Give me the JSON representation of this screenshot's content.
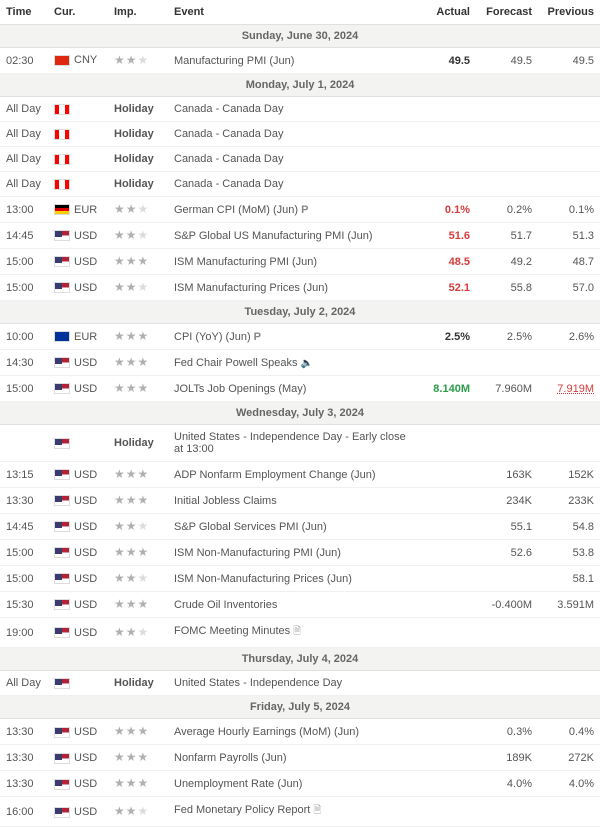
{
  "colors": {
    "text": "#333333",
    "muted": "#555555",
    "border": "#e0e0e0",
    "row_border": "#f0f0f0",
    "day_bg": "#f3f3f1",
    "actual_red": "#d73c3c",
    "actual_green": "#2a9c4a",
    "star_off": "#dcdcdc",
    "star_on": "#b0b0b0"
  },
  "columns": {
    "time": "Time",
    "cur": "Cur.",
    "imp": "Imp.",
    "event": "Event",
    "actual": "Actual",
    "forecast": "Forecast",
    "previous": "Previous"
  },
  "flag_map": {
    "CNY": "cn",
    "CAD": "ca",
    "EUR_DE": "de",
    "EUR": "eu",
    "USD": "us"
  },
  "days": [
    {
      "label": "Sunday, June 30, 2024",
      "rows": [
        {
          "time": "02:30",
          "cur": "CNY",
          "flag": "cn",
          "imp": 2,
          "event": "Manufacturing PMI (Jun)",
          "actual": "49.5",
          "actual_style": "bold",
          "forecast": "49.5",
          "previous": "49.5"
        }
      ]
    },
    {
      "label": "Monday, July 1, 2024",
      "rows": [
        {
          "time": "All Day",
          "cur": "",
          "flag": "ca",
          "holiday": true,
          "event": "Canada - Canada Day"
        },
        {
          "time": "All Day",
          "cur": "",
          "flag": "ca",
          "holiday": true,
          "event": "Canada - Canada Day"
        },
        {
          "time": "All Day",
          "cur": "",
          "flag": "ca",
          "holiday": true,
          "event": "Canada - Canada Day"
        },
        {
          "time": "All Day",
          "cur": "",
          "flag": "ca",
          "holiday": true,
          "event": "Canada - Canada Day"
        },
        {
          "time": "13:00",
          "cur": "EUR",
          "flag": "de",
          "imp": 2,
          "event": "German CPI (MoM) (Jun)",
          "prelim": true,
          "actual": "0.1%",
          "actual_style": "red",
          "forecast": "0.2%",
          "previous": "0.1%"
        },
        {
          "time": "14:45",
          "cur": "USD",
          "flag": "us",
          "imp": 2,
          "event": "S&P Global US Manufacturing PMI (Jun)",
          "actual": "51.6",
          "actual_style": "red",
          "forecast": "51.7",
          "previous": "51.3"
        },
        {
          "time": "15:00",
          "cur": "USD",
          "flag": "us",
          "imp": 3,
          "event": "ISM Manufacturing PMI (Jun)",
          "actual": "48.5",
          "actual_style": "red",
          "forecast": "49.2",
          "previous": "48.7"
        },
        {
          "time": "15:00",
          "cur": "USD",
          "flag": "us",
          "imp": 2,
          "event": "ISM Manufacturing Prices (Jun)",
          "actual": "52.1",
          "actual_style": "red",
          "forecast": "55.8",
          "previous": "57.0"
        }
      ]
    },
    {
      "label": "Tuesday, July 2, 2024",
      "rows": [
        {
          "time": "10:00",
          "cur": "EUR",
          "flag": "eu",
          "imp": 3,
          "event": "CPI (YoY) (Jun)",
          "prelim": true,
          "actual": "2.5%",
          "actual_style": "bold",
          "forecast": "2.5%",
          "previous": "2.6%"
        },
        {
          "time": "14:30",
          "cur": "USD",
          "flag": "us",
          "imp": 3,
          "event": "Fed Chair Powell Speaks",
          "audio": true
        },
        {
          "time": "15:00",
          "cur": "USD",
          "flag": "us",
          "imp": 3,
          "event": "JOLTs Job Openings (May)",
          "actual": "8.140M",
          "actual_style": "green",
          "forecast": "7.960M",
          "previous": "7.919M",
          "prev_revised": true
        }
      ]
    },
    {
      "label": "Wednesday, July 3, 2024",
      "rows": [
        {
          "time": "",
          "cur": "",
          "flag": "us",
          "holiday": true,
          "event": "United States - Independence Day - Early close at 13:00"
        },
        {
          "time": "13:15",
          "cur": "USD",
          "flag": "us",
          "imp": 3,
          "event": "ADP Nonfarm Employment Change (Jun)",
          "forecast": "163K",
          "previous": "152K"
        },
        {
          "time": "13:30",
          "cur": "USD",
          "flag": "us",
          "imp": 3,
          "event": "Initial Jobless Claims",
          "forecast": "234K",
          "previous": "233K"
        },
        {
          "time": "14:45",
          "cur": "USD",
          "flag": "us",
          "imp": 2,
          "event": "S&P Global Services PMI (Jun)",
          "forecast": "55.1",
          "previous": "54.8"
        },
        {
          "time": "15:00",
          "cur": "USD",
          "flag": "us",
          "imp": 3,
          "event": "ISM Non-Manufacturing PMI (Jun)",
          "forecast": "52.6",
          "previous": "53.8"
        },
        {
          "time": "15:00",
          "cur": "USD",
          "flag": "us",
          "imp": 2,
          "event": "ISM Non-Manufacturing Prices (Jun)",
          "previous": "58.1"
        },
        {
          "time": "15:30",
          "cur": "USD",
          "flag": "us",
          "imp": 3,
          "event": "Crude Oil Inventories",
          "forecast": "-0.400M",
          "previous": "3.591M"
        },
        {
          "time": "19:00",
          "cur": "USD",
          "flag": "us",
          "imp": 2,
          "event": "FOMC Meeting Minutes",
          "doc": true
        }
      ]
    },
    {
      "label": "Thursday, July 4, 2024",
      "rows": [
        {
          "time": "All Day",
          "cur": "",
          "flag": "us",
          "holiday": true,
          "event": "United States - Independence Day"
        }
      ]
    },
    {
      "label": "Friday, July 5, 2024",
      "rows": [
        {
          "time": "13:30",
          "cur": "USD",
          "flag": "us",
          "imp": 3,
          "event": "Average Hourly Earnings (MoM) (Jun)",
          "forecast": "0.3%",
          "previous": "0.4%"
        },
        {
          "time": "13:30",
          "cur": "USD",
          "flag": "us",
          "imp": 3,
          "event": "Nonfarm Payrolls (Jun)",
          "forecast": "189K",
          "previous": "272K"
        },
        {
          "time": "13:30",
          "cur": "USD",
          "flag": "us",
          "imp": 3,
          "event": "Unemployment Rate (Jun)",
          "forecast": "4.0%",
          "previous": "4.0%"
        },
        {
          "time": "16:00",
          "cur": "USD",
          "flag": "us",
          "imp": 2,
          "event": "Fed Monetary Policy Report",
          "doc": true
        }
      ]
    }
  ],
  "labels": {
    "holiday": "Holiday"
  }
}
